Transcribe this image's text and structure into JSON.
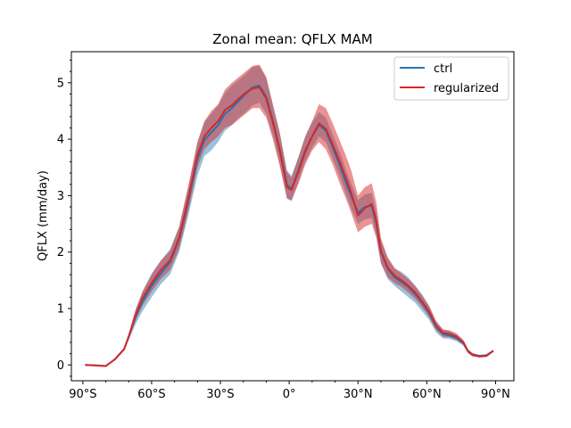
{
  "chart_data": {
    "type": "line",
    "title": "Zonal mean: QFLX MAM",
    "xlabel": "",
    "ylabel": "QFLX (mm/day)",
    "xlim": [
      -95,
      98
    ],
    "ylim": [
      -0.28,
      5.55
    ],
    "grid": false,
    "legend_position": "top-right",
    "x_ticks": [
      -90,
      -60,
      -30,
      0,
      30,
      60,
      90
    ],
    "x_tick_labels": [
      "90°S",
      "60°S",
      "30°S",
      "0°",
      "30°N",
      "60°N",
      "90°N"
    ],
    "y_ticks": [
      0,
      1,
      2,
      3,
      4,
      5
    ],
    "y_tick_labels": [
      "0",
      "1",
      "2",
      "3",
      "4",
      "5"
    ],
    "x": [
      -89,
      -84,
      -80,
      -76,
      -72,
      -70,
      -67,
      -64,
      -60,
      -56,
      -52,
      -48,
      -44,
      -40,
      -37,
      -34,
      -31,
      -28,
      -25,
      -22,
      -19,
      -16,
      -13,
      -10,
      -7,
      -4,
      -1,
      1,
      4,
      7,
      10,
      13,
      16,
      19,
      22,
      25,
      27,
      30,
      33,
      36,
      38,
      40,
      43,
      46,
      49,
      52,
      55,
      58,
      61,
      64,
      67,
      70,
      73,
      76,
      78,
      80,
      83,
      86,
      89
    ],
    "series": [
      {
        "name": "ctrl",
        "color": "#1f77b4",
        "band_color": "#1f77b4",
        "values": [
          0.0,
          -0.01,
          -0.02,
          0.1,
          0.28,
          0.5,
          0.85,
          1.12,
          1.4,
          1.62,
          1.82,
          2.22,
          2.9,
          3.65,
          3.98,
          4.12,
          4.25,
          4.45,
          4.55,
          4.68,
          4.8,
          4.92,
          4.95,
          4.75,
          4.3,
          3.8,
          3.2,
          3.12,
          3.45,
          3.8,
          4.05,
          4.25,
          4.15,
          3.85,
          3.55,
          3.2,
          3.0,
          2.7,
          2.8,
          2.82,
          2.5,
          2.0,
          1.7,
          1.55,
          1.47,
          1.38,
          1.25,
          1.1,
          0.92,
          0.68,
          0.55,
          0.52,
          0.48,
          0.38,
          0.24,
          0.18,
          0.16,
          0.17,
          0.25
        ],
        "lower": [
          0.0,
          -0.01,
          -0.02,
          0.09,
          0.26,
          0.44,
          0.72,
          0.95,
          1.2,
          1.43,
          1.6,
          2.0,
          2.65,
          3.35,
          3.7,
          3.8,
          3.95,
          4.15,
          4.25,
          4.38,
          4.48,
          4.6,
          4.65,
          4.45,
          4.05,
          3.55,
          2.95,
          2.9,
          3.25,
          3.6,
          3.85,
          4.05,
          3.95,
          3.65,
          3.35,
          3.0,
          2.78,
          2.5,
          2.58,
          2.6,
          2.3,
          1.8,
          1.52,
          1.4,
          1.3,
          1.2,
          1.1,
          0.95,
          0.8,
          0.58,
          0.47,
          0.46,
          0.42,
          0.34,
          0.21,
          0.15,
          0.14,
          0.15,
          0.23
        ],
        "upper": [
          0.0,
          -0.01,
          -0.02,
          0.11,
          0.3,
          0.56,
          0.98,
          1.3,
          1.62,
          1.85,
          2.05,
          2.45,
          3.15,
          3.95,
          4.3,
          4.45,
          4.6,
          4.82,
          4.95,
          5.05,
          5.15,
          5.28,
          5.3,
          5.08,
          4.58,
          4.08,
          3.45,
          3.35,
          3.68,
          4.05,
          4.3,
          4.48,
          4.38,
          4.08,
          3.78,
          3.42,
          3.22,
          2.92,
          3.02,
          3.05,
          2.72,
          2.2,
          1.9,
          1.7,
          1.65,
          1.55,
          1.4,
          1.25,
          1.05,
          0.78,
          0.63,
          0.6,
          0.54,
          0.43,
          0.28,
          0.21,
          0.18,
          0.19,
          0.27
        ]
      },
      {
        "name": "regularized",
        "color": "#d62728",
        "band_color": "#d62728",
        "values": [
          0.0,
          -0.01,
          -0.02,
          0.1,
          0.28,
          0.5,
          0.88,
          1.18,
          1.45,
          1.68,
          1.85,
          2.25,
          2.95,
          3.72,
          4.05,
          4.2,
          4.32,
          4.52,
          4.6,
          4.72,
          4.82,
          4.9,
          4.92,
          4.72,
          4.28,
          3.78,
          3.15,
          3.1,
          3.42,
          3.78,
          4.05,
          4.28,
          4.18,
          3.9,
          3.6,
          3.28,
          3.05,
          2.65,
          2.78,
          2.85,
          2.55,
          2.02,
          1.72,
          1.58,
          1.5,
          1.4,
          1.28,
          1.12,
          0.95,
          0.7,
          0.57,
          0.55,
          0.5,
          0.4,
          0.24,
          0.18,
          0.15,
          0.16,
          0.25
        ],
        "lower": [
          0.0,
          -0.01,
          -0.02,
          0.09,
          0.26,
          0.45,
          0.78,
          1.05,
          1.3,
          1.52,
          1.68,
          2.05,
          2.72,
          3.5,
          3.82,
          3.95,
          4.05,
          4.2,
          4.25,
          4.35,
          4.45,
          4.55,
          4.55,
          4.38,
          3.98,
          3.5,
          2.95,
          2.92,
          3.2,
          3.55,
          3.8,
          3.95,
          3.82,
          3.55,
          3.22,
          2.92,
          2.7,
          2.35,
          2.45,
          2.5,
          2.25,
          1.8,
          1.55,
          1.45,
          1.38,
          1.28,
          1.17,
          1.02,
          0.85,
          0.62,
          0.5,
          0.49,
          0.44,
          0.36,
          0.21,
          0.15,
          0.13,
          0.14,
          0.23
        ],
        "upper": [
          0.0,
          -0.01,
          -0.02,
          0.11,
          0.3,
          0.55,
          0.98,
          1.3,
          1.6,
          1.85,
          2.02,
          2.45,
          3.18,
          3.95,
          4.32,
          4.5,
          4.62,
          4.88,
          5.0,
          5.1,
          5.2,
          5.3,
          5.32,
          5.1,
          4.6,
          4.1,
          3.42,
          3.32,
          3.68,
          4.05,
          4.32,
          4.62,
          4.55,
          4.28,
          3.98,
          3.68,
          3.45,
          3.0,
          3.15,
          3.22,
          2.88,
          2.25,
          1.9,
          1.72,
          1.62,
          1.52,
          1.4,
          1.22,
          1.05,
          0.78,
          0.63,
          0.61,
          0.56,
          0.44,
          0.27,
          0.21,
          0.17,
          0.18,
          0.27
        ]
      }
    ]
  }
}
